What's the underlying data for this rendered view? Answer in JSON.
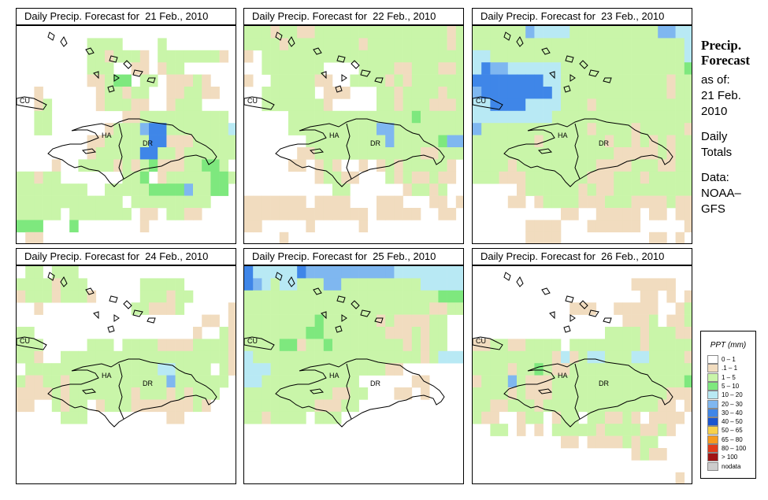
{
  "panels": [
    {
      "title": "Daily Precip. Forecast for  21 Feb., 2010",
      "date": "21 Feb., 2010",
      "grid": [
        "................W.........",
        "........gggg....g.........",
        "........ggtgggt.gggggggt..",
        "........ggg..tt.tgg.......",
        "........ttgGG.gg.tttgt....",
        "..t......tggtgg..ttggtt...",
        "..tg.....tgggtt..tggg.....",
        "..gg........ttgggggggggg..",
        "..gg......tgggbBBgggggggL.",
        "........ttgggggBBtttgggggL",
        "........tgggggBBggtggggggL",
        "....t..ggggtgtgGtttggGGg..",
        "ggtgg.......ggG.tgggggGGgG",
        "gggggggg..gggggGGGGbggGG..",
        "gggggggggggg.ggggggggg....",
        "ggggg.ggggggg.tt.ggtt.....",
        "GGG...G.......t...........",
        ".tt......................."
      ]
    },
    {
      "title": "Daily Precip. Forecast for  22 Feb., 2010",
      "date": "22 Feb., 2010",
      "grid": [
        "gggtggttgggggggggggggggtgg",
        "ggggtggggggggtgggggggggtgg",
        "t.gggggggggggggggggggggggg",
        "..ggggggg....ggggttgggttgg",
        "t..gggggtt..ggggtgtggggggg",
        "..gggggg.ttt...ggtggggtgggg",
        "..gggggggt.....ggtgggtttggg",
        ".....ggggggggggggggGggggggg",
        ".....ggggggggggbbggggggggg",
        ".......gggggggggbgggggGbbb",
        "......ttggggggggggggttgggL",
        ".....tt.tgt..t.tgtgggggt..",
        "........tggtt...gtgttgtt..",
        "..........gg......tggtg...",
        "ttttttt.tttt...ttt...tt.t.",
        "tttttttttttttt.ttttt..tt..",
        "tt.....t.....t............",
        "....t....................."
      ]
    },
    {
      "title": "Daily Precip. Forecast for  23 Feb., 2010",
      "date": "23 Feb., 2010",
      "grid": [
        "ggggggbLLLLggggggggggbbLLL",
        "ggggggggggggggggggggggggLL",
        "LLggggggggggggggggggggggLg",
        "LBbbLLLLLLggggggggggggggGg",
        "BBBBBBBBLLggggggggggggtggg",
        "bBBBBBBBBLggggggggggggtggg",
        "LLBBBBLLLLgggtgggggggggggg",
        "LLLLLLLLLggggggggggggggggg",
        "bggggggggggggtggggtgggggtg",
        "gggggggtgggggggtggtgtgtggg",
        "ggggggggggggggggtttttgtggg",
        "ggggtgggggggggttttgggttggg",
        "gggtttgggggggtttgggtgggggtt",
        ".....tggggggtgttgggggggggtt",
        "....tt.tggggtttgggttttgttg.",
        "..........tt..ttttt.tt.tt..",
        "......tttt...tttttt.....t..",
        "......tttt..........tt.t..."
      ]
    },
    {
      "title": "Daily Precip. Forecast for  24 Feb., 2010",
      "date": "24 Feb., 2010",
      "grid": [
        ".gg.ggg...................",
        "ggggtggg......ggggg.......",
        "tgggtgggt.....gggtgg.....t",
        "..t..........ggtttg.....tt",
        ".....................tt.tt",
        "gg..................t..gtt",
        "ggg.....ggg.ggggttttggggtt",
        "ggt..gggggggggggggggggggtt",
        ".gggggggggggggggLLgggg.gt.",
        "gttggtgggggggggggbgggggg..",
        "ttttgtgggggggtgggtgtggg...",
        "tt..gtgg.tgggtttttttgt....",
        ".....ggg.........tt.......",
        "..........................",
        "..........................",
        "..........................",
        "..........................",
        ".........................."
      ]
    },
    {
      "title": "Daily Precip. Forecast for  25 Feb., 2010",
      "date": "25 Feb., 2010",
      "grid": [
        "BLLLLLBbbbbbbbbbbLLLLLLLLL",
        "BbLgLLgggbbgggggggggLLLLLL",
        "ggggggggggggggggggggggGGG.",
        "gggggggggggggggggggggttgg.",
        "ggggggggGggggggtgttttgg...",
        "gggggggGGgggggggtttgtgg...",
        "ggggGGtggGggggggggtgtgg...",
        "LgggggggggggggggggggtgLLL.",
        "LLLgggggggggggggtt........",
        "LLggggggggggg......tt.....",
        "ggggggggggttgg...tt.t.....",
        "ggggggggtttgg.............",
        "ggtgggg.ggg...............",
        ".........................",
        "..........................",
        "..........................",
        "..........................",
        ".........................."
      ]
    },
    {
      "title": "Daily Precip. Forecast for  26 Feb., 2010",
      "date": "26 Feb., 2010",
      "grid": [
        ".........................t",
        "..................ttttt..t",
        "...................tt.t.t.",
        "...........ttt..ttttt..tgt",
        ".................tttg.ttgt",
        "...............ggggtgggttg",
        "ttggttgggg.ggggggggtgggggg",
        "gggggggggtLtgLLgggLLggggtg",
        "ggggtggGgttggggggggggggggg",
        "tgggbgtttgggggggggggggggGt",
        "ggggtgtttgggggggggggggtttg",
        "ggttgggtgggggggggggggtt.tt",
        "gtt..tgg.tgg.ggttgt.tttt..",
        "..gg.t.t.gggggtggggttgt...",
        "..........tt.ttttgtgg.....",
        "..................tgtt....",
        "..........................",
        ".......................t.."
      ]
    }
  ],
  "country_labels": {
    "cuba": "CU",
    "haiti": "HA",
    "dominican_republic": "DR"
  },
  "side_info": {
    "title_line1": "Precip.",
    "title_line2": "Forecast",
    "asof_label": "as of:",
    "asof_date1": "21 Feb.",
    "asof_date2": "2010",
    "totals_line1": "Daily",
    "totals_line2": "Totals",
    "data_label": "Data:",
    "data_source1": "NOAA–",
    "data_source2": "GFS"
  },
  "legend": {
    "title": "PPT (mm)",
    "items": [
      {
        "label": "0 – 1",
        "color": "#ffffff"
      },
      {
        "label": ".1 – 1",
        "color": "#f1dcbf"
      },
      {
        "label": "1 – 5",
        "color": "#c9f5a9"
      },
      {
        "label": "5 – 10",
        "color": "#7ee87e"
      },
      {
        "label": "10 – 20",
        "color": "#b8e9f4"
      },
      {
        "label": "20 – 30",
        "color": "#7fb7f0"
      },
      {
        "label": "30 – 40",
        "color": "#3f86e8"
      },
      {
        "label": "40 – 50",
        "color": "#1b56d0"
      },
      {
        "label": "50 – 65",
        "color": "#f7d14a"
      },
      {
        "label": "65 – 80",
        "color": "#f79a1e"
      },
      {
        "label": "80 – 100",
        "color": "#e23b1a"
      },
      {
        "label": "> 100",
        "color": "#a11414"
      },
      {
        "label": "nodata",
        "color": "#cccccc"
      }
    ]
  },
  "grid_colors": {
    ".": "#ffffff",
    "t": "#f1dcbf",
    "g": "#c9f5a9",
    "G": "#7ee87e",
    "L": "#b8e9f4",
    "b": "#7fb7f0",
    "B": "#3f86e8",
    "W": "#ffffff"
  }
}
